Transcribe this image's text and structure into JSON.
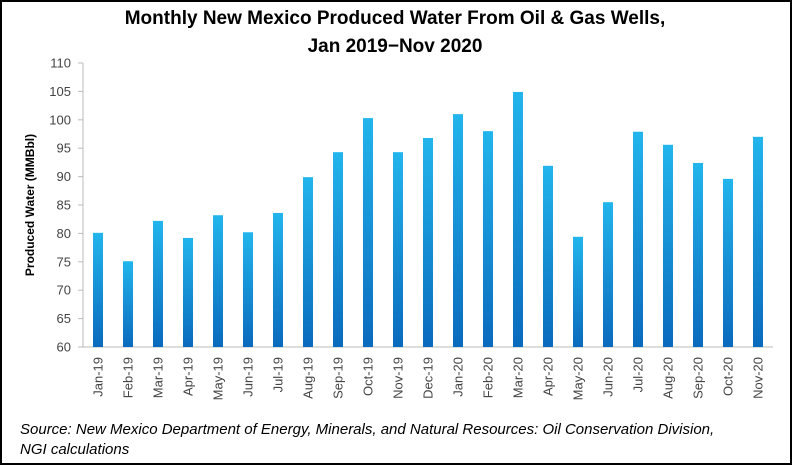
{
  "chart_data": {
    "type": "bar",
    "title": [
      "Monthly New Mexico Produced Water From Oil & Gas Wells,",
      "Jan 2019−Nov 2020"
    ],
    "y_label": "Produced Water (MMBbl)",
    "categories": [
      "Jan-19",
      "Feb-19",
      "Mar-19",
      "Apr-19",
      "May-19",
      "Jun-19",
      "Jul-19",
      "Aug-19",
      "Sep-19",
      "Oct-19",
      "Nov-19",
      "Dec-19",
      "Jan-20",
      "Feb-20",
      "Mar-20",
      "Apr-20",
      "May-20",
      "Jun-20",
      "Jul-20",
      "Aug-20",
      "Sep-20",
      "Oct-20",
      "Nov-20"
    ],
    "values": [
      80.1,
      75.1,
      82.2,
      79.2,
      83.2,
      80.2,
      83.6,
      89.9,
      94.3,
      100.3,
      94.3,
      96.8,
      101.0,
      98.0,
      104.9,
      91.9,
      79.4,
      85.5,
      97.9,
      95.6,
      92.4,
      89.6,
      97.0
    ],
    "color": "#22b5ec",
    "ylim": [
      60,
      110
    ],
    "yticks": [
      60,
      65,
      70,
      75,
      80,
      85,
      90,
      95,
      100,
      105,
      110
    ],
    "grid": false,
    "source": [
      "Source: New Mexico Department of Energy, Minerals, and Natural Resources: Oil Conservation Division,",
      "NGI calculations"
    ]
  }
}
